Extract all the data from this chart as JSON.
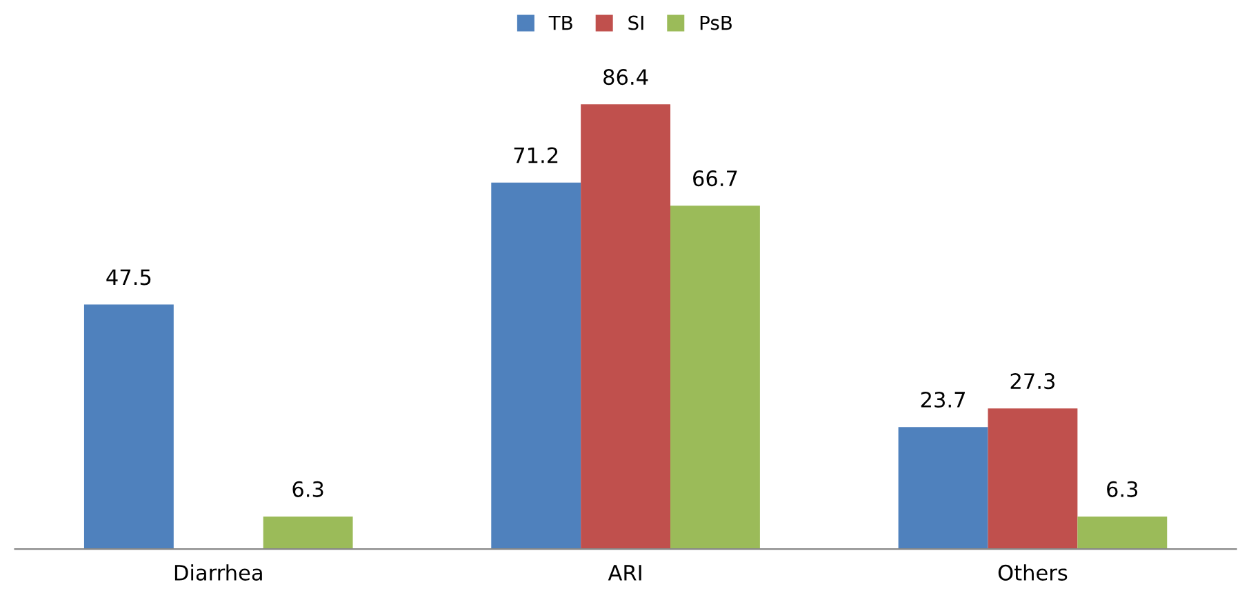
{
  "chart_data": {
    "type": "bar",
    "categories": [
      "Diarrhea",
      "ARI",
      "Others"
    ],
    "series": [
      {
        "name": "TB",
        "color": "#4f81bd",
        "values": [
          47.5,
          71.2,
          23.7
        ]
      },
      {
        "name": "SI",
        "color": "#c0504d",
        "values": [
          null,
          86.4,
          27.3
        ]
      },
      {
        "name": "PsB",
        "color": "#9bbb59",
        "values": [
          6.3,
          66.7,
          6.3
        ]
      }
    ],
    "data_labels": true,
    "legend": "top",
    "grid": false,
    "tick_labels": "x"
  }
}
